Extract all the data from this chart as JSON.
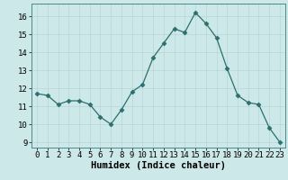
{
  "x": [
    0,
    1,
    2,
    3,
    4,
    5,
    6,
    7,
    8,
    9,
    10,
    11,
    12,
    13,
    14,
    15,
    16,
    17,
    18,
    19,
    20,
    21,
    22,
    23
  ],
  "y": [
    11.7,
    11.6,
    11.1,
    11.3,
    11.3,
    11.1,
    10.4,
    10.0,
    10.8,
    11.8,
    12.2,
    13.7,
    14.5,
    15.3,
    15.1,
    16.2,
    15.6,
    14.8,
    13.1,
    11.6,
    11.2,
    11.1,
    9.8,
    9.0
  ],
  "line_color": "#2d6e6e",
  "marker": "D",
  "marker_size": 2.5,
  "xlabel": "Humidex (Indice chaleur)",
  "ylim": [
    8.7,
    16.7
  ],
  "xlim": [
    -0.5,
    23.5
  ],
  "yticks": [
    9,
    10,
    11,
    12,
    13,
    14,
    15,
    16
  ],
  "xticks": [
    0,
    1,
    2,
    3,
    4,
    5,
    6,
    7,
    8,
    9,
    10,
    11,
    12,
    13,
    14,
    15,
    16,
    17,
    18,
    19,
    20,
    21,
    22,
    23
  ],
  "background_color": "#cde8e8",
  "grid_color": "#b8d4d4",
  "tick_fontsize": 6.5,
  "xlabel_fontsize": 7.5
}
